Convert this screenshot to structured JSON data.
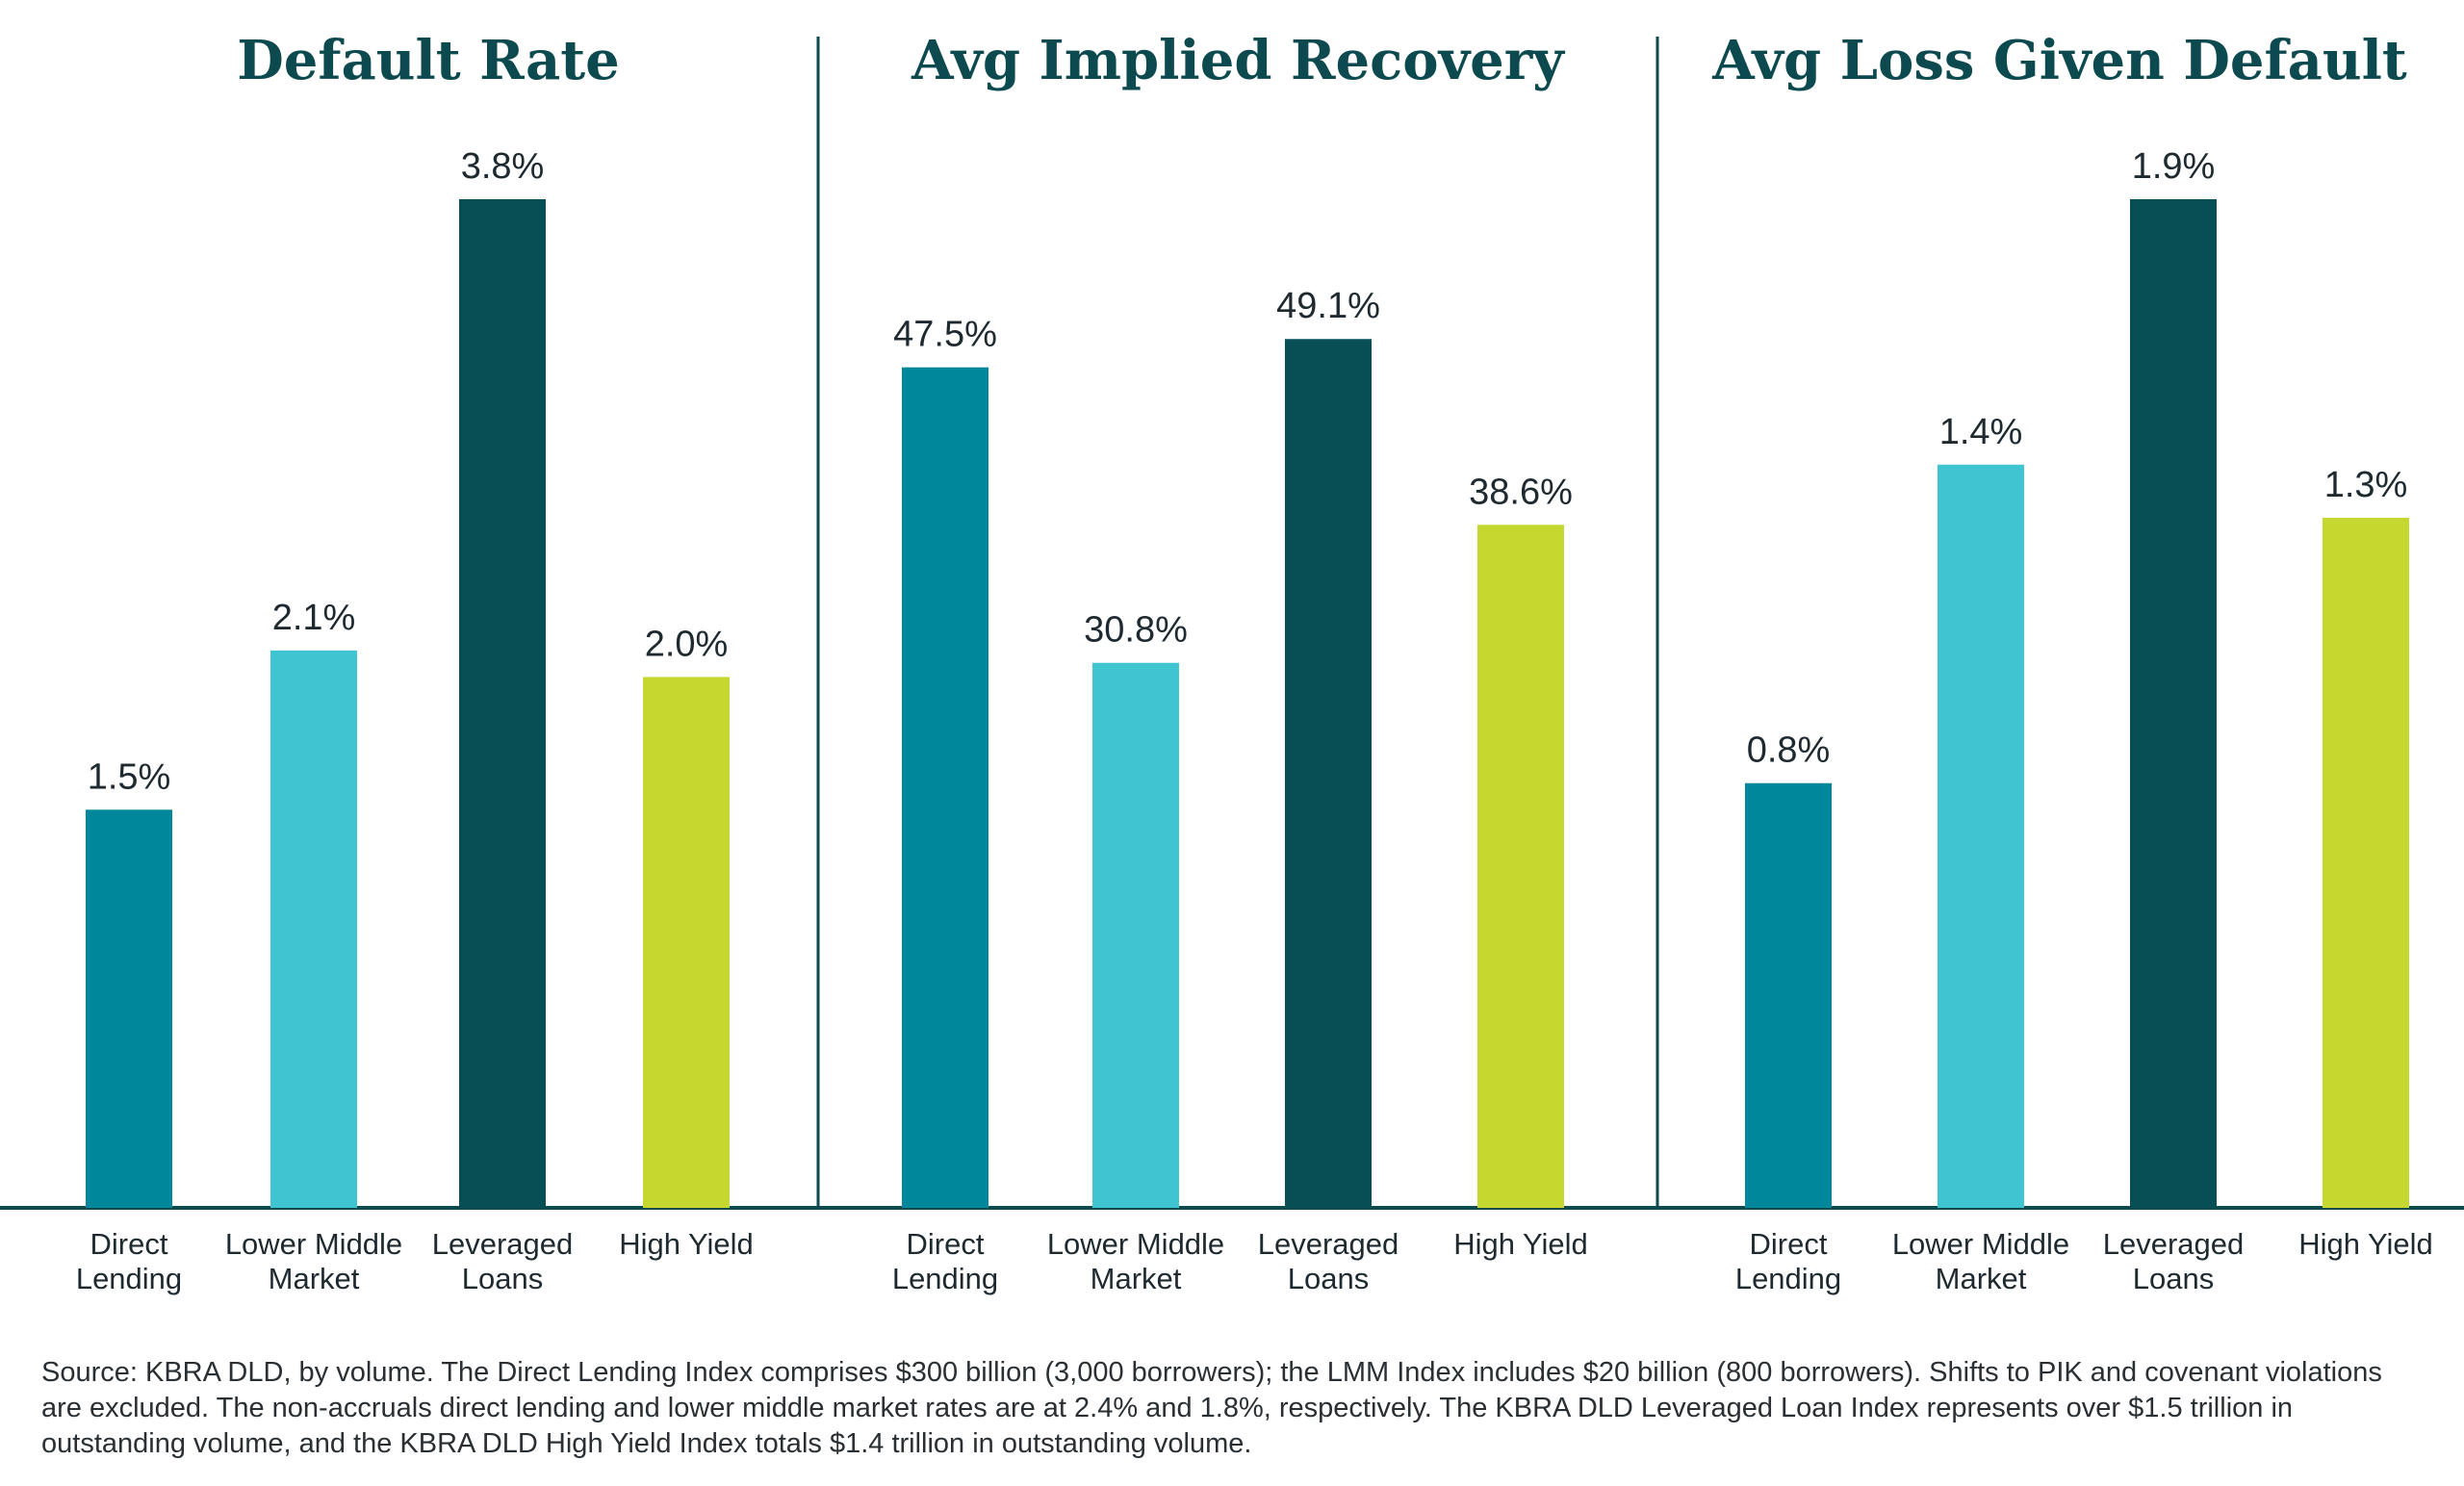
{
  "chart_data": [
    {
      "type": "bar",
      "title": "Default Rate",
      "categories": [
        "Direct Lending",
        "Lower Middle Market",
        "Leveraged Loans",
        "High Yield"
      ],
      "values": [
        1.5,
        2.1,
        3.8,
        2.0
      ],
      "value_labels": [
        "1.5%",
        "2.1%",
        "3.8%",
        "2.0%"
      ],
      "ylim": [
        0,
        3.8
      ],
      "grid": false,
      "xlabel": "",
      "ylabel": ""
    },
    {
      "type": "bar",
      "title": "Avg Implied Recovery",
      "categories": [
        "Direct Lending",
        "Lower Middle Market",
        "Leveraged Loans",
        "High Yield"
      ],
      "values": [
        47.5,
        30.8,
        49.1,
        38.6
      ],
      "value_labels": [
        "47.5%",
        "30.8%",
        "49.1%",
        "38.6%"
      ],
      "ylim": [
        0,
        57
      ],
      "grid": false,
      "xlabel": "",
      "ylabel": ""
    },
    {
      "type": "bar",
      "title": "Avg Loss Given Default",
      "categories": [
        "Direct Lending",
        "Lower Middle Market",
        "Leveraged Loans",
        "High Yield"
      ],
      "values": [
        0.8,
        1.4,
        1.9,
        1.3
      ],
      "value_labels": [
        "0.8%",
        "1.4%",
        "1.9%",
        "1.3%"
      ],
      "ylim": [
        0,
        1.9
      ],
      "grid": false,
      "xlabel": "",
      "ylabel": ""
    }
  ],
  "category_colors": [
    "#00879b",
    "#3fc5d1",
    "#074f55",
    "#c5d82f"
  ],
  "colors": {
    "title": "#0d4a50",
    "divider": "#0d4a50",
    "baseline": "#0d4a50",
    "text": "#1f2a30"
  },
  "source_note": "Source: KBRA DLD, by volume. The Direct Lending Index comprises $300 billion (3,000 borrowers); the LMM Index includes $20 billion (800 borrowers). Shifts to PIK and covenant violations are excluded. The non-accruals direct lending and lower middle market rates are at 2.4% and 1.8%, respectively. The KBRA DLD Leveraged Loan Index represents over $1.5 trillion in outstanding volume, and the KBRA DLD High Yield Index totals $1.4 trillion in outstanding volume."
}
